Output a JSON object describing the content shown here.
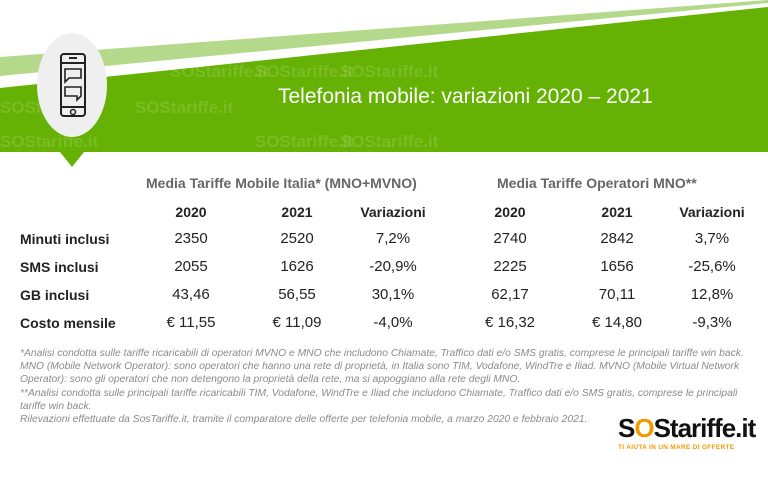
{
  "header": {
    "title": "Telefonia mobile: variazioni 2020 – 2021",
    "icon": "smartphone-chat-icon",
    "watermark": "SOStariffe.it"
  },
  "colors": {
    "green": "#66b204",
    "light_green": "#b4d98a",
    "orange": "#f39a00"
  },
  "table": {
    "groups": [
      "Media Tariffe Mobile Italia* (MNO+MVNO)",
      "Media Tariffe Operatori MNO**"
    ],
    "columns": [
      "2020",
      "2021",
      "Variazioni",
      "2020",
      "2021",
      "Variazioni"
    ],
    "rows": [
      {
        "label": "Minuti inclusi",
        "values": [
          "2350",
          "2520",
          "7,2%",
          "2740",
          "2842",
          "3,7%"
        ]
      },
      {
        "label": "SMS inclusi",
        "values": [
          "2055",
          "1626",
          "-20,9%",
          "2225",
          "1656",
          "-25,6%"
        ]
      },
      {
        "label": "GB inclusi",
        "values": [
          "43,46",
          "56,55",
          "30,1%",
          "62,17",
          "70,11",
          "12,8%"
        ]
      },
      {
        "label": "Costo mensile",
        "values": [
          "€ 11,55",
          "€ 11,09",
          "-4,0%",
          "€ 16,32",
          "€ 14,80",
          "-9,3%"
        ]
      }
    ]
  },
  "notes": [
    "*Analisi condotta sulle tariffe ricaricabili di operatori MVNO e MNO che includono Chiamate, Traffico dati e/o SMS gratis, comprese le principali tariffe win back. MNO (Mobile Network Operator): sono operatori che hanno una rete di proprietà, in Italia sono TIM, Vodafone, WindTre e Iliad. MVNO (Mobile Virtual Network Operator): sono gli operatori che non detengono la proprietà della rete, ma si appoggiano alla rete degli MNO.",
    "**Analisi condotta sulle principali tariffe ricaricabili TIM, Vodafone, WindTre e Iliad che includono Chiamate, Traffico dati e/o SMS gratis, comprese le principali tariffe win back.",
    "Rilevazioni effettuate da SosTariffe.it, tramite il comparatore delle offerte per telefonia mobile, a marzo 2020 e febbraio 2021."
  ],
  "logo": {
    "text_s": "S",
    "text_o": "O",
    "text_rest": "Stariffe.it",
    "tagline": "TI AIUTA IN UN MARE DI OFFERTE"
  }
}
